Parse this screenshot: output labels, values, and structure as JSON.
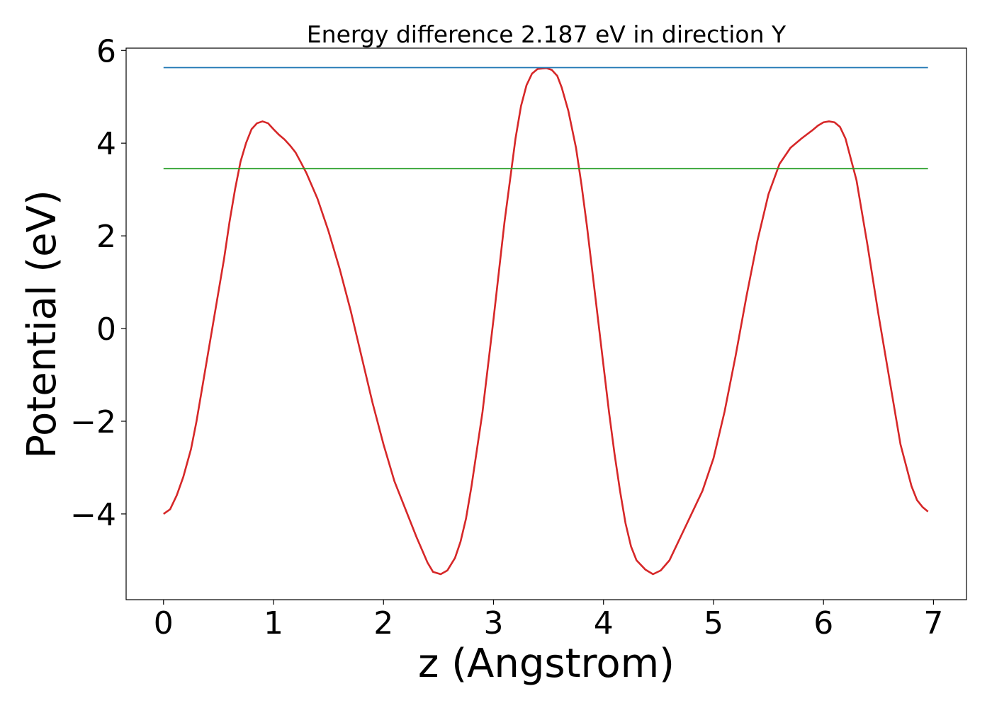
{
  "chart_data": {
    "type": "line",
    "title": "Energy difference 2.187 eV in direction Y",
    "xlabel": "z (Angstrom)",
    "ylabel": "Potential (eV)",
    "xlim": [
      -0.34,
      7.3
    ],
    "ylim": [
      -5.85,
      6.05
    ],
    "xticks": [
      0,
      1,
      2,
      3,
      4,
      5,
      6,
      7
    ],
    "xtick_labels": [
      "0",
      "1",
      "2",
      "3",
      "4",
      "5",
      "6",
      "7"
    ],
    "yticks": [
      -4,
      -2,
      0,
      2,
      4,
      6
    ],
    "ytick_labels": [
      "−4",
      "−2",
      "0",
      "2",
      "4",
      "6"
    ],
    "grid": false,
    "legend": "none",
    "series": [
      {
        "color": "#d62728",
        "style": "curve",
        "points": [
          [
            0.0,
            -4.0
          ],
          [
            0.06,
            -3.9
          ],
          [
            0.12,
            -3.6
          ],
          [
            0.18,
            -3.2
          ],
          [
            0.25,
            -2.6
          ],
          [
            0.3,
            -2.0
          ],
          [
            0.35,
            -1.3
          ],
          [
            0.4,
            -0.6
          ],
          [
            0.45,
            0.1
          ],
          [
            0.5,
            0.8
          ],
          [
            0.55,
            1.5
          ],
          [
            0.6,
            2.3
          ],
          [
            0.65,
            3.0
          ],
          [
            0.7,
            3.6
          ],
          [
            0.75,
            4.0
          ],
          [
            0.8,
            4.3
          ],
          [
            0.85,
            4.43
          ],
          [
            0.9,
            4.47
          ],
          [
            0.95,
            4.43
          ],
          [
            1.0,
            4.3
          ],
          [
            1.05,
            4.18
          ],
          [
            1.1,
            4.08
          ],
          [
            1.15,
            3.95
          ],
          [
            1.2,
            3.8
          ],
          [
            1.25,
            3.58
          ],
          [
            1.3,
            3.35
          ],
          [
            1.4,
            2.8
          ],
          [
            1.5,
            2.1
          ],
          [
            1.6,
            1.3
          ],
          [
            1.7,
            0.4
          ],
          [
            1.8,
            -0.6
          ],
          [
            1.9,
            -1.6
          ],
          [
            2.0,
            -2.5
          ],
          [
            2.1,
            -3.3
          ],
          [
            2.2,
            -3.9
          ],
          [
            2.3,
            -4.5
          ],
          [
            2.4,
            -5.05
          ],
          [
            2.45,
            -5.25
          ],
          [
            2.52,
            -5.3
          ],
          [
            2.58,
            -5.22
          ],
          [
            2.65,
            -4.95
          ],
          [
            2.7,
            -4.6
          ],
          [
            2.75,
            -4.1
          ],
          [
            2.8,
            -3.4
          ],
          [
            2.9,
            -1.8
          ],
          [
            3.0,
            0.2
          ],
          [
            3.1,
            2.3
          ],
          [
            3.2,
            4.1
          ],
          [
            3.25,
            4.8
          ],
          [
            3.3,
            5.25
          ],
          [
            3.35,
            5.5
          ],
          [
            3.4,
            5.6
          ],
          [
            3.48,
            5.62
          ],
          [
            3.53,
            5.58
          ],
          [
            3.58,
            5.45
          ],
          [
            3.62,
            5.2
          ],
          [
            3.68,
            4.7
          ],
          [
            3.75,
            3.9
          ],
          [
            3.8,
            3.1
          ],
          [
            3.85,
            2.2
          ],
          [
            3.9,
            1.2
          ],
          [
            3.95,
            0.2
          ],
          [
            4.0,
            -0.8
          ],
          [
            4.05,
            -1.8
          ],
          [
            4.1,
            -2.7
          ],
          [
            4.15,
            -3.5
          ],
          [
            4.2,
            -4.2
          ],
          [
            4.25,
            -4.7
          ],
          [
            4.3,
            -5.0
          ],
          [
            4.38,
            -5.2
          ],
          [
            4.45,
            -5.3
          ],
          [
            4.52,
            -5.22
          ],
          [
            4.6,
            -5.0
          ],
          [
            4.7,
            -4.5
          ],
          [
            4.8,
            -4.0
          ],
          [
            4.9,
            -3.5
          ],
          [
            5.0,
            -2.8
          ],
          [
            5.1,
            -1.8
          ],
          [
            5.2,
            -0.6
          ],
          [
            5.3,
            0.7
          ],
          [
            5.4,
            1.9
          ],
          [
            5.5,
            2.9
          ],
          [
            5.6,
            3.55
          ],
          [
            5.7,
            3.9
          ],
          [
            5.8,
            4.1
          ],
          [
            5.9,
            4.28
          ],
          [
            5.95,
            4.38
          ],
          [
            6.0,
            4.45
          ],
          [
            6.05,
            4.47
          ],
          [
            6.1,
            4.45
          ],
          [
            6.15,
            4.35
          ],
          [
            6.2,
            4.1
          ],
          [
            6.3,
            3.2
          ],
          [
            6.4,
            1.8
          ],
          [
            6.5,
            0.3
          ],
          [
            6.6,
            -1.1
          ],
          [
            6.7,
            -2.5
          ],
          [
            6.8,
            -3.4
          ],
          [
            6.85,
            -3.7
          ],
          [
            6.9,
            -3.85
          ],
          [
            6.95,
            -3.95
          ]
        ]
      },
      {
        "color": "#1f77b4",
        "style": "line",
        "points": [
          [
            0.0,
            5.63
          ],
          [
            6.95,
            5.63
          ]
        ]
      },
      {
        "color": "#2ca02c",
        "style": "line",
        "points": [
          [
            0.0,
            3.45
          ],
          [
            6.95,
            3.45
          ]
        ]
      }
    ]
  }
}
